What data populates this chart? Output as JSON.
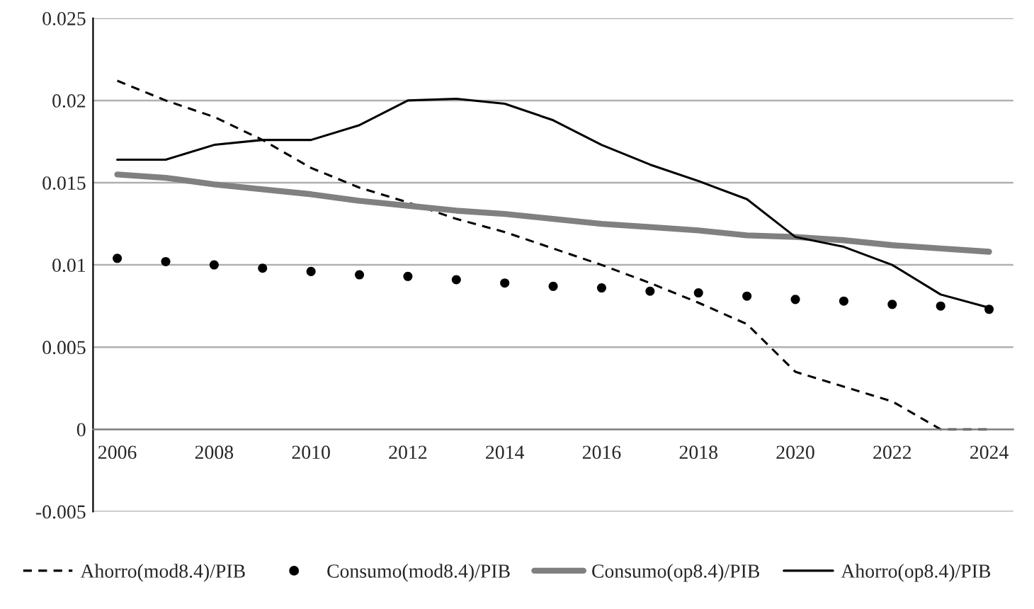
{
  "chart_data": {
    "type": "line",
    "categories": [
      "2006",
      null,
      "2008",
      null,
      "2010",
      null,
      "2012",
      null,
      "2014",
      null,
      "2016",
      null,
      "2018",
      null,
      "2020",
      null,
      "2022",
      null,
      "2024"
    ],
    "ylim": [
      -0.005,
      0.025
    ],
    "yticks": [
      -0.005,
      0,
      0.005,
      0.01,
      0.015,
      0.02,
      0.025
    ],
    "grid": "y",
    "legend": "bottom",
    "series": [
      {
        "name": "Ahorro(mod8.4)/PIB",
        "color": "#000000",
        "line_style": "dashed",
        "values": [
          0.0212,
          0.02,
          0.019,
          0.0176,
          0.0159,
          0.0147,
          0.0138,
          0.0128,
          0.012,
          0.011,
          0.01,
          0.0089,
          0.0077,
          0.0064,
          0.0035,
          0.0026,
          0.0017,
          0.0,
          0.0
        ]
      },
      {
        "name": "Consumo(mod8.4)/PIB",
        "color": "#000000",
        "type": "scatter",
        "marker": "circle",
        "values": [
          0.0104,
          0.0102,
          0.01,
          0.0098,
          0.0096,
          0.0094,
          0.0093,
          0.0091,
          0.0089,
          0.0087,
          0.0086,
          0.0084,
          0.0083,
          0.0081,
          0.0079,
          0.0078,
          0.0076,
          0.0075,
          0.0073
        ]
      },
      {
        "name": "Consumo(op8.4)/PIB",
        "color": "#808080",
        "line_style": "solid",
        "values": [
          0.0155,
          0.0153,
          0.0149,
          0.0146,
          0.0143,
          0.0139,
          0.0136,
          0.0133,
          0.0131,
          0.0128,
          0.0125,
          0.0123,
          0.0121,
          0.0118,
          0.0117,
          0.0115,
          0.0112,
          0.011,
          0.0108
        ]
      },
      {
        "name": "Ahorro(op8.4)/PIB",
        "color": "#000000",
        "line_style": "solid",
        "values": [
          0.0164,
          0.0164,
          0.0173,
          0.0176,
          0.0176,
          0.0185,
          0.02,
          0.0201,
          0.0198,
          0.0188,
          0.0173,
          0.0161,
          0.0151,
          0.014,
          0.0117,
          0.0111,
          0.01,
          0.0082,
          0.0074
        ]
      }
    ]
  }
}
